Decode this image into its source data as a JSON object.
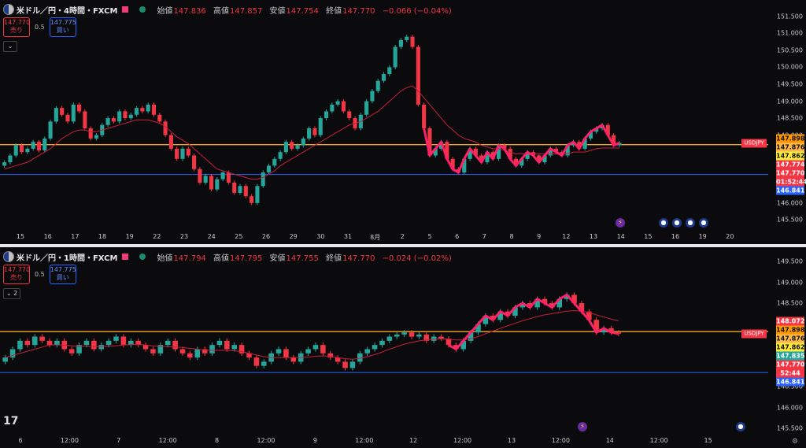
{
  "colors": {
    "up": "#26a69a",
    "down": "#f23645",
    "zigzag": "#ff1f6b",
    "ma": "#c81e3c",
    "orange_line": "#f5a623",
    "blue_line": "#2962ff"
  },
  "panes": [
    {
      "id": "p1",
      "symbol": "米ドル／円・4時間・FXCM",
      "ohlc": [
        {
          "label": "始値",
          "value": "147.836"
        },
        {
          "label": "高値",
          "value": "147.857"
        },
        {
          "label": "安値",
          "value": "147.754"
        },
        {
          "label": "終値",
          "value": "147.770"
        },
        {
          "label": "",
          "value": "−0.066 (−0.04%)"
        }
      ],
      "sell": {
        "price": "147.770",
        "label": "売り"
      },
      "spread": "0.5",
      "buy": {
        "price": "147.775",
        "label": "買い"
      },
      "collapse_label": "⌄",
      "ymin": 145.3,
      "ymax": 151.75,
      "y_ticks": [
        "151.500",
        "151.000",
        "150.500",
        "150.000",
        "149.500",
        "149.000",
        "148.500",
        "148.000",
        "147.500",
        "147.000",
        "146.500",
        "146.000",
        "145.500"
      ],
      "price_tags": [
        {
          "text": "147.898",
          "value": 147.898,
          "color": "#ff9800"
        },
        {
          "text": "147.876",
          "value": 147.876,
          "color": "#ffb74d"
        },
        {
          "text": "147.862",
          "value": 147.862,
          "color": "#ffeb3b"
        },
        {
          "text": "147.774",
          "value": 147.774,
          "color": "#f23645"
        },
        {
          "text": "147.770",
          "value": 147.77,
          "color": "#f23645"
        },
        {
          "text": "01:52:44",
          "value": 147.64,
          "color": "#f23645"
        },
        {
          "text": "146.841",
          "value": 146.841,
          "color": "#2962ff"
        }
      ],
      "symbol_tag": "USDJPY",
      "hline_orange": 147.72,
      "hline_blue": 146.841,
      "x_labels": [
        "15",
        "16",
        "17",
        "18",
        "19",
        "22",
        "23",
        "24",
        "25",
        "26",
        "29",
        "30",
        "31",
        "8月",
        "2",
        "5",
        "6",
        "7",
        "8",
        "9",
        "12",
        "13",
        "14",
        "15",
        "16",
        "19",
        "20"
      ],
      "events": [
        {
          "icon": "⚡",
          "color": "#6a2ba0"
        },
        {
          "icon": "●",
          "color": "#fff"
        },
        {
          "icon": "●",
          "color": "#fff"
        },
        {
          "icon": "●",
          "color": "#fff"
        },
        {
          "icon": "●",
          "color": "#fff"
        }
      ],
      "closes": [
        147.2,
        147.4,
        147.7,
        147.5,
        147.6,
        147.8,
        147.55,
        147.9,
        148.4,
        148.8,
        148.6,
        148.4,
        148.9,
        148.7,
        148.2,
        147.9,
        148.0,
        148.3,
        148.5,
        148.4,
        148.7,
        148.5,
        148.6,
        148.8,
        148.7,
        148.9,
        148.6,
        148.4,
        148.0,
        147.6,
        147.3,
        147.6,
        147.4,
        147.0,
        146.6,
        146.8,
        146.4,
        146.7,
        146.9,
        146.6,
        146.3,
        146.5,
        146.2,
        146.0,
        146.5,
        146.9,
        147.1,
        147.3,
        147.5,
        147.8,
        147.6,
        147.7,
        147.9,
        148.2,
        148.0,
        148.5,
        148.7,
        148.9,
        149.0,
        148.7,
        148.5,
        148.2,
        148.6,
        149.0,
        149.3,
        149.6,
        149.8,
        150.0,
        150.6,
        150.8,
        150.9,
        150.6,
        148.9,
        148.2,
        147.4,
        147.6,
        147.8,
        147.3,
        147.0,
        146.9,
        147.3,
        147.6,
        147.4,
        147.2,
        147.5,
        147.3,
        147.7,
        147.6,
        147.3,
        147.1,
        147.3,
        147.5,
        147.4,
        147.2,
        147.4,
        147.6,
        147.5,
        147.4,
        147.7,
        147.8,
        147.6,
        147.9,
        148.1,
        148.2,
        148.3,
        148.0,
        147.7,
        147.77
      ],
      "zigzag_from": 73,
      "ma": [
        147.0,
        147.05,
        147.1,
        147.15,
        147.2,
        147.3,
        147.4,
        147.5,
        147.6,
        147.75,
        147.9,
        148.0,
        148.1,
        148.15,
        148.15,
        148.1,
        148.1,
        148.15,
        148.2,
        148.25,
        148.3,
        148.35,
        148.4,
        148.45,
        148.45,
        148.45,
        148.4,
        148.35,
        148.25,
        148.1,
        147.95,
        147.85,
        147.75,
        147.6,
        147.45,
        147.3,
        147.15,
        147.0,
        146.95,
        146.9,
        146.85,
        146.8,
        146.75,
        146.7,
        146.7,
        146.75,
        146.85,
        146.95,
        147.1,
        147.2,
        147.3,
        147.4,
        147.5,
        147.6,
        147.7,
        147.8,
        147.9,
        148.0,
        148.1,
        148.2,
        148.3,
        148.35,
        148.4,
        148.5,
        148.6,
        148.7,
        148.85,
        149.0,
        149.15,
        149.3,
        149.4,
        149.45,
        149.3,
        149.1,
        148.9,
        148.7,
        148.5,
        148.3,
        148.15,
        148.0,
        147.9,
        147.85,
        147.8,
        147.7,
        147.65,
        147.6,
        147.6,
        147.55,
        147.5,
        147.45,
        147.45,
        147.45,
        147.45,
        147.45,
        147.45,
        147.45,
        147.45,
        147.45,
        147.45,
        147.5,
        147.5,
        147.5,
        147.55,
        147.6,
        147.62,
        147.62,
        147.62,
        147.62
      ]
    },
    {
      "id": "p2",
      "symbol": "米ドル／円・1時間・FXCM",
      "ohlc": [
        {
          "label": "始値",
          "value": "147.794"
        },
        {
          "label": "高値",
          "value": "147.795"
        },
        {
          "label": "安値",
          "value": "147.755"
        },
        {
          "label": "終値",
          "value": "147.770"
        },
        {
          "label": "",
          "value": "−0.024 (−0.02%)"
        }
      ],
      "sell": {
        "price": "147.770",
        "label": "売り"
      },
      "spread": "0.5",
      "buy": {
        "price": "147.775",
        "label": "買い"
      },
      "collapse_label": "⌄ 2",
      "ymin": 145.45,
      "ymax": 149.65,
      "y_ticks": [
        "149.500",
        "149.000",
        "148.500",
        "148.000",
        "147.500",
        "147.000",
        "146.500",
        "146.000",
        "145.500"
      ],
      "price_tags": [
        {
          "text": "148.072",
          "value": 148.072,
          "color": "#f23645"
        },
        {
          "text": "147.898",
          "value": 147.898,
          "color": "#ff9800"
        },
        {
          "text": "147.876",
          "value": 147.876,
          "color": "#ffb74d"
        },
        {
          "text": "147.862",
          "value": 147.862,
          "color": "#ffeb3b"
        },
        {
          "text": "147.835",
          "value": 147.835,
          "color": "#26a69a"
        },
        {
          "text": "147.770",
          "value": 147.77,
          "color": "#f23645"
        },
        {
          "text": "52:44",
          "value": 147.66,
          "color": "#f23645"
        },
        {
          "text": "146.841",
          "value": 146.841,
          "color": "#2962ff"
        }
      ],
      "symbol_tag": "USDJPY",
      "hline_orange": 147.82,
      "hline_blue": 146.841,
      "x_labels": [
        "6",
        "12:00",
        "7",
        "12:00",
        "8",
        "12:00",
        "9",
        "12:00",
        "12",
        "12:00",
        "13",
        "12:00",
        "14",
        "12:00",
        "15"
      ],
      "events": [
        {
          "icon": "⚡",
          "color": "#6a2ba0"
        },
        {
          "icon": "●",
          "color": "#fff"
        }
      ],
      "closes": [
        147.2,
        147.4,
        147.6,
        147.5,
        147.7,
        147.6,
        147.5,
        147.6,
        147.4,
        147.3,
        147.5,
        147.6,
        147.4,
        147.5,
        147.6,
        147.7,
        147.5,
        147.6,
        147.5,
        147.4,
        147.3,
        147.5,
        147.6,
        147.4,
        147.3,
        147.2,
        147.4,
        147.3,
        147.5,
        147.6,
        147.4,
        147.5,
        147.3,
        147.2,
        147.0,
        147.1,
        147.3,
        147.4,
        147.2,
        147.1,
        147.3,
        147.4,
        147.5,
        147.3,
        147.2,
        147.1,
        146.95,
        147.1,
        147.3,
        147.4,
        147.5,
        147.6,
        147.7,
        147.75,
        147.8,
        147.7,
        147.75,
        147.6,
        147.7,
        147.65,
        147.5,
        147.4,
        147.6,
        147.8,
        148.0,
        148.2,
        148.1,
        148.3,
        148.2,
        148.4,
        148.5,
        148.4,
        148.6,
        148.5,
        148.4,
        148.6,
        148.7,
        148.5,
        148.3,
        148.1,
        147.8,
        147.9,
        147.8,
        147.77
      ],
      "zigzag_from": 60,
      "ma": [
        147.2,
        147.25,
        147.3,
        147.35,
        147.4,
        147.45,
        147.5,
        147.5,
        147.5,
        147.48,
        147.47,
        147.47,
        147.46,
        147.46,
        147.47,
        147.48,
        147.5,
        147.51,
        147.51,
        147.5,
        147.48,
        147.47,
        147.46,
        147.45,
        147.44,
        147.42,
        147.4,
        147.38,
        147.37,
        147.37,
        147.37,
        147.36,
        147.34,
        147.3,
        147.26,
        147.22,
        147.2,
        147.2,
        147.2,
        147.2,
        147.2,
        147.21,
        147.23,
        147.24,
        147.23,
        147.2,
        147.17,
        147.16,
        147.18,
        147.22,
        147.27,
        147.33,
        147.4,
        147.46,
        147.52,
        147.56,
        147.6,
        147.62,
        147.64,
        147.65,
        147.64,
        147.62,
        147.62,
        147.65,
        147.7,
        147.77,
        147.83,
        147.9,
        147.96,
        148.02,
        148.08,
        148.13,
        148.18,
        148.22,
        148.25,
        148.28,
        148.31,
        148.32,
        148.31,
        148.28,
        148.22,
        148.17,
        148.12,
        148.08
      ]
    }
  ]
}
